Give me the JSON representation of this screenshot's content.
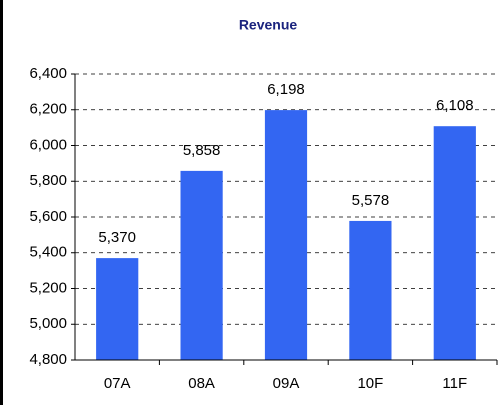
{
  "chart_data": {
    "type": "bar",
    "title": "Revenue",
    "categories": [
      "07A",
      "08A",
      "09A",
      "10F",
      "11F"
    ],
    "values": [
      5370,
      5858,
      6198,
      5578,
      6108
    ],
    "value_labels": [
      "5,370",
      "5,858",
      "6,198",
      "5,578",
      "6,108"
    ],
    "color": "#3366f2",
    "ylim": [
      4800,
      6400
    ],
    "yticks": [
      {
        "value": 4800,
        "label": "4,800"
      },
      {
        "value": 5000,
        "label": "5,000"
      },
      {
        "value": 5200,
        "label": "5,200"
      },
      {
        "value": 5400,
        "label": "5,400"
      },
      {
        "value": 5600,
        "label": "5,600"
      },
      {
        "value": 5800,
        "label": "5,800"
      },
      {
        "value": 6000,
        "label": "6,000"
      },
      {
        "value": 6200,
        "label": "6,200"
      },
      {
        "value": 6400,
        "label": "6,400"
      }
    ],
    "grid": true
  }
}
